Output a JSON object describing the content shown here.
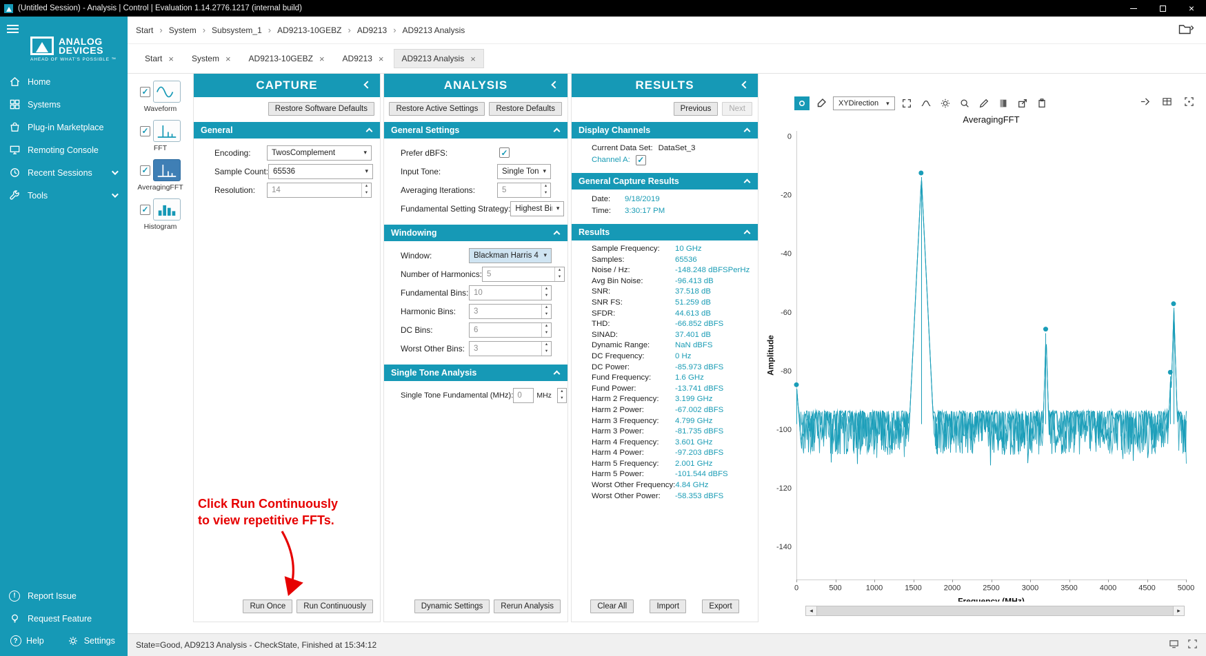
{
  "window": {
    "title": "(Untitled Session) - Analysis | Control | Evaluation 1.14.2776.1217 (internal build)"
  },
  "icons": {
    "close": "×",
    "window_close": "×",
    "crumb_sep": "›",
    "check": "✓",
    "caret_down": "▾",
    "spin_up": "▴",
    "spin_down": "▾",
    "scroll_left": "◂",
    "scroll_right": "▸",
    "report_issue_glyph": "!",
    "help_glyph": "?"
  },
  "branding": {
    "line1": "ANALOG",
    "line2": "DEVICES",
    "tagline": "AHEAD OF WHAT'S POSSIBLE ™"
  },
  "breadcrumb": [
    "Start",
    "System",
    "Subsystem_1",
    "AD9213-10GEBZ",
    "AD9213",
    "AD9213 Analysis"
  ],
  "tabs": [
    {
      "label": "Start"
    },
    {
      "label": "System"
    },
    {
      "label": "AD9213-10GEBZ"
    },
    {
      "label": "AD9213"
    },
    {
      "label": "AD9213 Analysis",
      "active": true
    }
  ],
  "sidebar": {
    "nav": [
      {
        "label": "Home",
        "icon": "home-icon"
      },
      {
        "label": "Systems",
        "icon": "systems-icon"
      },
      {
        "label": "Plug-in Marketplace",
        "icon": "marketplace-icon"
      },
      {
        "label": "Remoting Console",
        "icon": "console-icon"
      },
      {
        "label": "Recent Sessions",
        "icon": "sessions-icon",
        "expandable": true
      },
      {
        "label": "Tools",
        "icon": "tools-icon",
        "expandable": true
      }
    ],
    "footer": [
      {
        "label": "Report Issue",
        "icon": "report-issue-icon"
      },
      {
        "label": "Request Feature",
        "icon": "request-feature-icon"
      },
      {
        "label": "Help",
        "icon": "help-icon"
      },
      {
        "label": "Settings",
        "icon": "settings-icon"
      }
    ]
  },
  "plot_selector": {
    "items": [
      {
        "label": "Waveform",
        "checked": true,
        "selected": false
      },
      {
        "label": "FFT",
        "checked": true,
        "selected": false
      },
      {
        "label": "AveragingFFT",
        "checked": true,
        "selected": true
      },
      {
        "label": "Histogram",
        "checked": true,
        "selected": false
      }
    ]
  },
  "capture": {
    "title": "CAPTURE",
    "toolbar": {
      "restore_defaults": "Restore Software Defaults"
    },
    "sections": {
      "general": "General"
    },
    "fields": {
      "encoding": {
        "label": "Encoding:",
        "value": "TwosComplement"
      },
      "sample_count": {
        "label": "Sample Count:",
        "value": "65536"
      },
      "resolution": {
        "label": "Resolution:",
        "value": "14"
      }
    },
    "annotation": {
      "line1": "Click Run Continuously",
      "line2": "to view repetitive FFTs."
    },
    "footer": {
      "run_once": "Run Once",
      "run_continuously": "Run Continuously"
    }
  },
  "analysis": {
    "title": "ANALYSIS",
    "toolbar": {
      "restore_active": "Restore Active Settings",
      "restore_defaults": "Restore Defaults"
    },
    "sections": {
      "general": "General Settings",
      "windowing": "Windowing",
      "single_tone": "Single Tone Analysis"
    },
    "general": {
      "prefer_dbfs": {
        "label": "Prefer dBFS:",
        "checked": true
      },
      "input_tone": {
        "label": "Input Tone:",
        "value": "Single Tone"
      },
      "averaging_iterations": {
        "label": "Averaging Iterations:",
        "value": "5"
      },
      "fundamental_strategy": {
        "label": "Fundamental Setting Strategy:",
        "value": "Highest Bin"
      }
    },
    "windowing": {
      "window": {
        "label": "Window:",
        "value": "Blackman Harris 4"
      },
      "num_harmonics": {
        "label": "Number of Harmonics:",
        "value": "5"
      },
      "fundamental_bins": {
        "label": "Fundamental Bins:",
        "value": "10"
      },
      "harmonic_bins": {
        "label": "Harmonic Bins:",
        "value": "3"
      },
      "dc_bins": {
        "label": "DC Bins:",
        "value": "6"
      },
      "worst_other_bins": {
        "label": "Worst Other Bins:",
        "value": "3"
      }
    },
    "single_tone": {
      "fundamental": {
        "label": "Single Tone Fundamental (MHz):",
        "value": "0",
        "unit": "MHz"
      }
    },
    "footer": {
      "dynamic_settings": "Dynamic Settings",
      "rerun_analysis": "Rerun Analysis"
    }
  },
  "results": {
    "title": "RESULTS",
    "toolbar": {
      "previous": "Previous",
      "next": "Next"
    },
    "sections": {
      "display_channels": "Display Channels",
      "general_capture": "General Capture Results",
      "results": "Results"
    },
    "display_channels": {
      "current_data_set_label": "Current Data Set:",
      "current_data_set": "DataSet_3",
      "channel_a_label": "Channel A:",
      "channel_a_checked": true
    },
    "general_capture": [
      {
        "label": "Date:",
        "value": "9/18/2019"
      },
      {
        "label": "Time:",
        "value": "3:30:17 PM"
      }
    ],
    "rows": [
      {
        "label": "Sample Frequency:",
        "value": "10 GHz"
      },
      {
        "label": "Samples:",
        "value": "65536"
      },
      {
        "label": "Noise / Hz:",
        "value": "-148.248 dBFSPerHz"
      },
      {
        "label": "Avg Bin Noise:",
        "value": "-96.413 dB"
      },
      {
        "label": "SNR:",
        "value": "37.518 dB"
      },
      {
        "label": "SNR FS:",
        "value": "51.259 dB"
      },
      {
        "label": "SFDR:",
        "value": "44.613 dB"
      },
      {
        "label": "THD:",
        "value": "-66.852 dBFS"
      },
      {
        "label": "SINAD:",
        "value": "37.401 dB"
      },
      {
        "label": "Dynamic Range:",
        "value": "NaN dBFS"
      },
      {
        "label": "DC Frequency:",
        "value": "0 Hz"
      },
      {
        "label": "DC Power:",
        "value": "-85.973 dBFS"
      },
      {
        "label": "Fund Frequency:",
        "value": "1.6 GHz"
      },
      {
        "label": "Fund Power:",
        "value": "-13.741 dBFS"
      },
      {
        "label": "Harm 2 Frequency:",
        "value": "3.199 GHz"
      },
      {
        "label": "Harm 2 Power:",
        "value": "-67.002 dBFS"
      },
      {
        "label": "Harm 3 Frequency:",
        "value": "4.799 GHz"
      },
      {
        "label": "Harm 3 Power:",
        "value": "-81.735 dBFS"
      },
      {
        "label": "Harm 4 Frequency:",
        "value": "3.601 GHz"
      },
      {
        "label": "Harm 4 Power:",
        "value": "-97.203 dBFS"
      },
      {
        "label": "Harm 5 Frequency:",
        "value": "2.001 GHz"
      },
      {
        "label": "Harm 5 Power:",
        "value": "-101.544 dBFS"
      },
      {
        "label": "Worst Other Frequency:",
        "value": "4.84 GHz"
      },
      {
        "label": "Worst Other Power:",
        "value": "-58.353 dBFS"
      }
    ],
    "footer": {
      "clear_all": "Clear All",
      "import": "Import",
      "export": "Export"
    }
  },
  "chart": {
    "toolbar": {
      "xy_direction": "XYDirection"
    }
  },
  "chart_data": {
    "type": "line",
    "title": "AveragingFFT",
    "xlabel": "Frequency (MHz)",
    "ylabel": "Amplitude",
    "xlim": [
      0,
      5000
    ],
    "ylim": [
      -151,
      2
    ],
    "x_ticks": [
      0,
      500,
      1000,
      1500,
      2000,
      2500,
      3000,
      3500,
      4000,
      4500,
      5000
    ],
    "y_ticks": [
      0,
      -20,
      -40,
      -60,
      -80,
      -100,
      -120,
      -140
    ],
    "grid": false,
    "legend": false,
    "line_color": "#1a9db8",
    "noise_floor_dbfs": -100,
    "noise_peak_to_peak_db": 15,
    "peaks": [
      {
        "name": "DC",
        "freq_mhz": 0,
        "power_dbfs": -85.973,
        "skirt_mhz": 60
      },
      {
        "name": "Fundamental",
        "freq_mhz": 1600,
        "power_dbfs": -13.741,
        "skirt_mhz": 170
      },
      {
        "name": "Harm 5",
        "freq_mhz": 2001,
        "power_dbfs": -101.544,
        "skirt_mhz": 25
      },
      {
        "name": "Harm 2",
        "freq_mhz": 3199,
        "power_dbfs": -67.002,
        "skirt_mhz": 45
      },
      {
        "name": "Harm 4",
        "freq_mhz": 3601,
        "power_dbfs": -97.203,
        "skirt_mhz": 25
      },
      {
        "name": "Harm 3",
        "freq_mhz": 4799,
        "power_dbfs": -81.735,
        "skirt_mhz": 40
      },
      {
        "name": "Worst Other",
        "freq_mhz": 4840,
        "power_dbfs": -58.353,
        "skirt_mhz": 55
      }
    ],
    "markers": [
      {
        "freq_mhz": 0,
        "power_dbfs": -85.973
      },
      {
        "freq_mhz": 1600,
        "power_dbfs": -13.741
      },
      {
        "freq_mhz": 3199,
        "power_dbfs": -67.002
      },
      {
        "freq_mhz": 4799,
        "power_dbfs": -81.735
      },
      {
        "freq_mhz": 4840,
        "power_dbfs": -58.353
      }
    ]
  },
  "status_bar": {
    "text": "State=Good, AD9213 Analysis - CheckState, Finished at 15:34:12"
  }
}
